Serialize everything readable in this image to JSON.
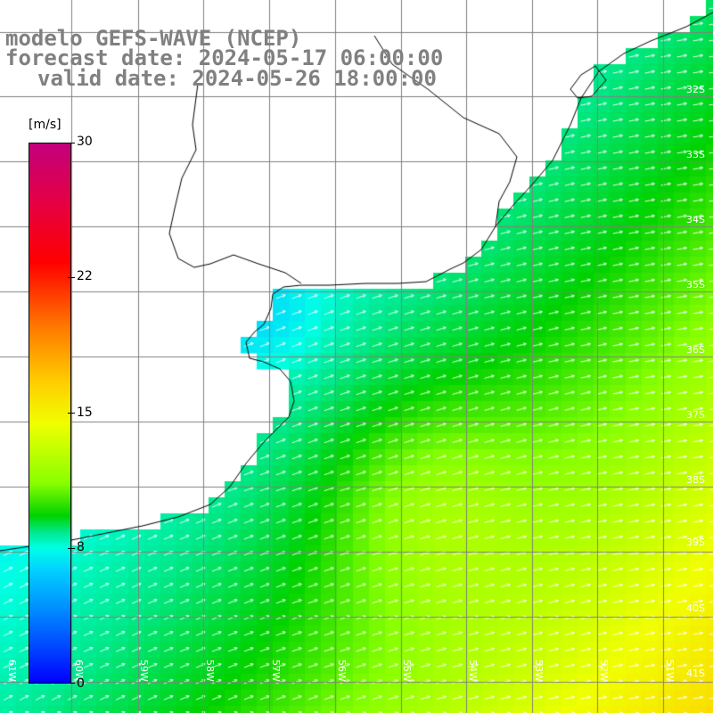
{
  "header": {
    "line1": "modelo GEFS-WAVE (NCEP)",
    "line2": "forecast date: 2024-05-17 06:00:00",
    "line3": "valid date: 2024-05-26 18:00:00"
  },
  "colorbar": {
    "units": "[m/s]",
    "min": 0,
    "max": 30,
    "ticks": [
      "30",
      "22",
      "15",
      "8",
      "0"
    ]
  },
  "map": {
    "lat_labels": [
      "32S",
      "33S",
      "34S",
      "35S",
      "36S",
      "37S",
      "38S",
      "39S",
      "40S",
      "41S"
    ],
    "lon_labels": [
      "61W",
      "60W",
      "59W",
      "58W",
      "57W",
      "56W",
      "55W",
      "54W",
      "53W",
      "52W",
      "51W"
    ],
    "variable": "wind speed",
    "colors": {
      "land": "#ffffff",
      "grid": "#808080",
      "coast": "#000000",
      "vectors": "#ffffff",
      "title_text": "#808080"
    }
  }
}
